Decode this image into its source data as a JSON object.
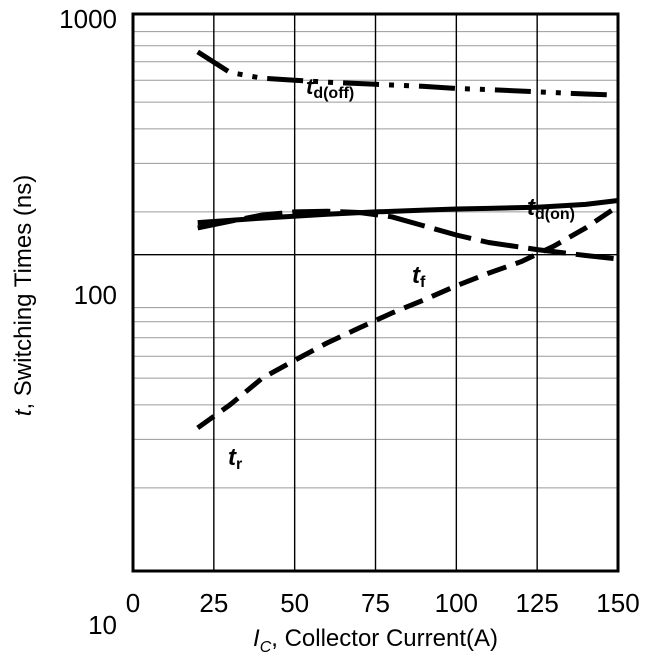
{
  "chart_data": {
    "type": "line",
    "xlabel": {
      "var": "I",
      "sub": "C",
      "rest": ", Collector Current(A)"
    },
    "ylabel": {
      "var": "t",
      "rest": ", Switching Times (ns)"
    },
    "xlim": [
      0,
      150
    ],
    "ylim": [
      10,
      1000
    ],
    "yscale": "log",
    "grid": true,
    "xticks": [
      0,
      25,
      50,
      75,
      100,
      125,
      150
    ],
    "yticks": [
      10,
      100,
      1000
    ],
    "series": [
      {
        "name": "td(off)",
        "label_main": "t",
        "label_sub": "d(off)",
        "dash": "long-dash-dot-dot",
        "x": [
          20,
          30,
          40,
          50,
          60,
          75,
          90,
          100,
          110,
          125,
          140,
          150
        ],
        "y": [
          760,
          640,
          610,
          600,
          590,
          580,
          570,
          560,
          555,
          545,
          535,
          530
        ]
      },
      {
        "name": "td(on)",
        "label_main": "t",
        "label_sub": "d(on)",
        "dash": "solid",
        "x": [
          20,
          40,
          60,
          75,
          90,
          100,
          110,
          125,
          140,
          150
        ],
        "y": [
          183,
          190,
          196,
          200,
          203,
          205,
          206,
          208,
          213,
          220
        ]
      },
      {
        "name": "tf",
        "label_main": "t",
        "label_sub": "f",
        "dash": "long-dash",
        "x": [
          20,
          30,
          40,
          50,
          60,
          70,
          80,
          90,
          100,
          110,
          125,
          140,
          150
        ],
        "y": [
          175,
          185,
          195,
          200,
          201,
          199,
          192,
          178,
          165,
          155,
          146,
          139,
          135
        ]
      },
      {
        "name": "tr",
        "label_main": "t",
        "label_sub": "r",
        "dash": "dash",
        "x": [
          20,
          30,
          40,
          50,
          60,
          70,
          80,
          90,
          100,
          110,
          120,
          130,
          140,
          150
        ],
        "y": [
          33,
          40,
          50,
          58,
          67,
          76,
          86,
          96,
          108,
          120,
          132,
          150,
          175,
          210
        ]
      }
    ]
  }
}
